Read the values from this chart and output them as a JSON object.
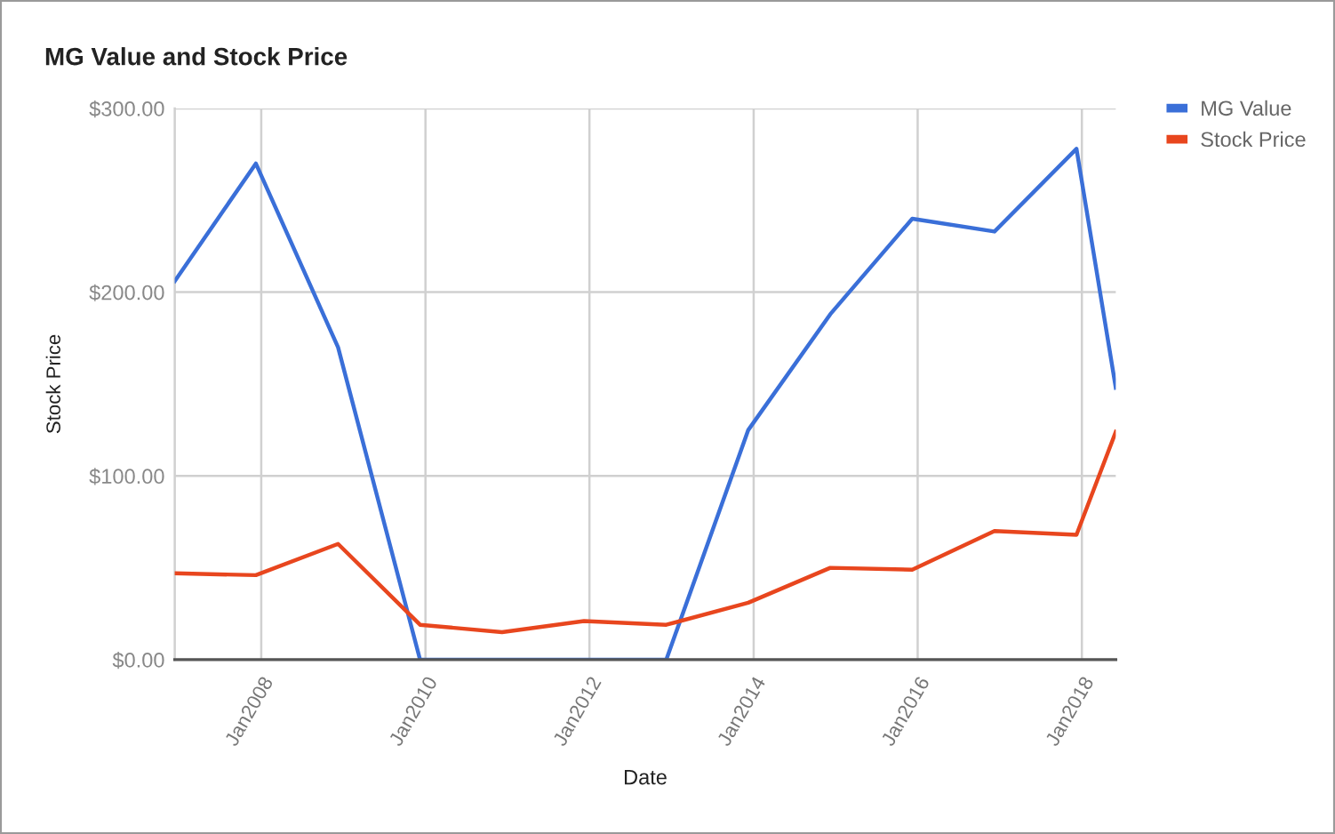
{
  "chart_data": {
    "type": "line",
    "title": "MG Value and Stock Price",
    "xlabel": "Date",
    "ylabel": "Stock Price",
    "x": [
      "2006-12-12",
      "2007-12-08",
      "2008-12-08",
      "2009-12-08",
      "2010-12-08",
      "2011-12-08",
      "2012-12-08",
      "2013-12-08",
      "2014-12-08",
      "2015-12-08",
      "2016-12-08",
      "2017-12-08",
      "2018-06-01"
    ],
    "series": [
      {
        "name": "MG Value",
        "color": "#3a6fd8",
        "values": [
          206,
          270,
          170,
          0,
          0,
          0,
          0,
          125,
          188,
          240,
          233,
          278,
          148
        ]
      },
      {
        "name": "Stock Price",
        "color": "#e8461e",
        "values": [
          47,
          46,
          63,
          19,
          15,
          21,
          19,
          31,
          50,
          49,
          70,
          68,
          124
        ]
      }
    ],
    "xlim": [
      "2006-12-12",
      "2018-06-01"
    ],
    "xticks": [
      {
        "value": "2008-01-01",
        "label": "Jan2008"
      },
      {
        "value": "2010-01-01",
        "label": "Jan2010"
      },
      {
        "value": "2012-01-01",
        "label": "Jan2012"
      },
      {
        "value": "2014-01-01",
        "label": "Jan2014"
      },
      {
        "value": "2016-01-01",
        "label": "Jan2016"
      },
      {
        "value": "2018-01-01",
        "label": "Jan2018"
      }
    ],
    "ylim": [
      0,
      300
    ],
    "yticks": [
      {
        "value": 0,
        "label": "$0.00"
      },
      {
        "value": 100,
        "label": "$100.00"
      },
      {
        "value": 200,
        "label": "$200.00"
      },
      {
        "value": 300,
        "label": "$300.00"
      }
    ],
    "grid": true,
    "legend": "top right"
  }
}
